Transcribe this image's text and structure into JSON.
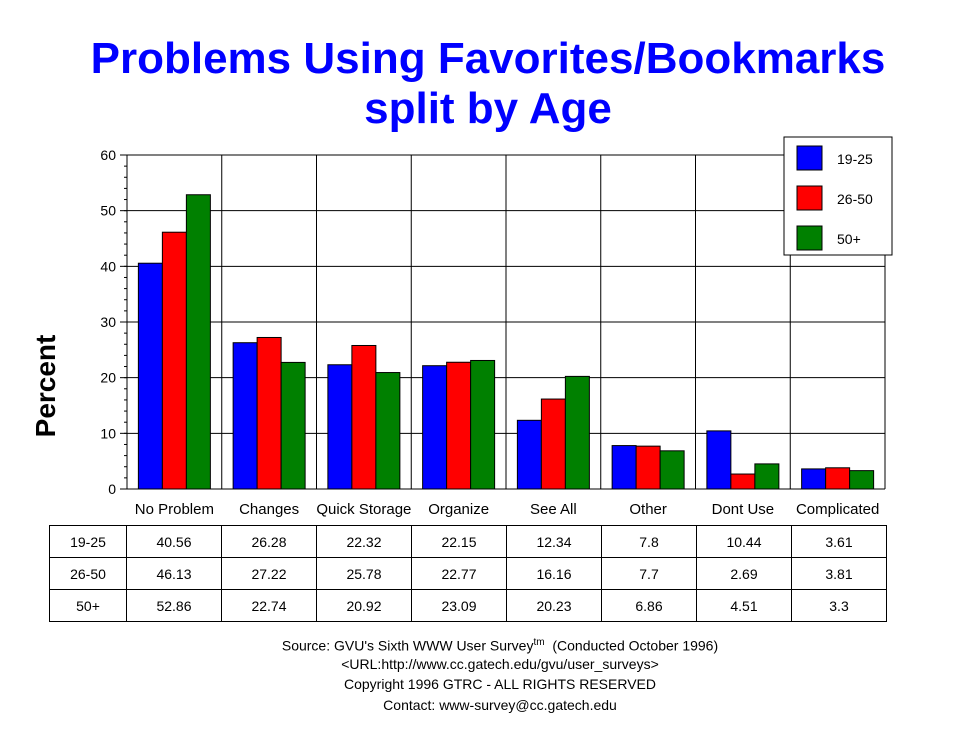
{
  "title": "Problems Using Favorites/Bookmarks",
  "subtitle": "split by Age",
  "chart_data": {
    "type": "bar",
    "title": "Problems Using Favorites/Bookmarks split by Age",
    "xlabel": "",
    "ylabel": "Percent",
    "ylim": [
      0,
      60
    ],
    "yticks": [
      "0",
      "10",
      "20",
      "30",
      "40",
      "50",
      "60"
    ],
    "grid": true,
    "legend_position": "top-right",
    "categories": [
      "No Problem",
      "Changes",
      "Quick Storage",
      "Organize",
      "See All",
      "Other",
      "Dont Use",
      "Complicated"
    ],
    "series": [
      {
        "name": "19-25",
        "color": "#0000ff",
        "values": [
          40.56,
          26.28,
          22.32,
          22.15,
          12.34,
          7.8,
          10.44,
          3.61
        ]
      },
      {
        "name": "26-50",
        "color": "#ff0000",
        "values": [
          46.13,
          27.22,
          25.78,
          22.77,
          16.16,
          7.7,
          2.69,
          3.81
        ]
      },
      {
        "name": "50+",
        "color": "#008000",
        "values": [
          52.86,
          22.74,
          20.92,
          23.09,
          20.23,
          6.86,
          4.51,
          3.3
        ]
      }
    ]
  },
  "table": {
    "rows": [
      {
        "label": "19-25",
        "cells": [
          "40.56",
          "26.28",
          "22.32",
          "22.15",
          "12.34",
          "7.8",
          "10.44",
          "3.61"
        ]
      },
      {
        "label": "26-50",
        "cells": [
          "46.13",
          "27.22",
          "25.78",
          "22.77",
          "16.16",
          "7.7",
          "2.69",
          "3.81"
        ]
      },
      {
        "label": "50+",
        "cells": [
          "52.86",
          "22.74",
          "20.92",
          "23.09",
          "20.23",
          "6.86",
          "4.51",
          "3.3"
        ]
      }
    ]
  },
  "footer": {
    "source_prefix": "Source: GVU's Sixth WWW User Survey",
    "source_sup": "tm",
    "source_suffix": "  (Conducted October 1996)",
    "url": "<URL:http://www.cc.gatech.edu/gvu/user_surveys>",
    "copyright": "Copyright 1996 GTRC -  ALL RIGHTS RESERVED",
    "contact": "Contact: www-survey@cc.gatech.edu"
  }
}
